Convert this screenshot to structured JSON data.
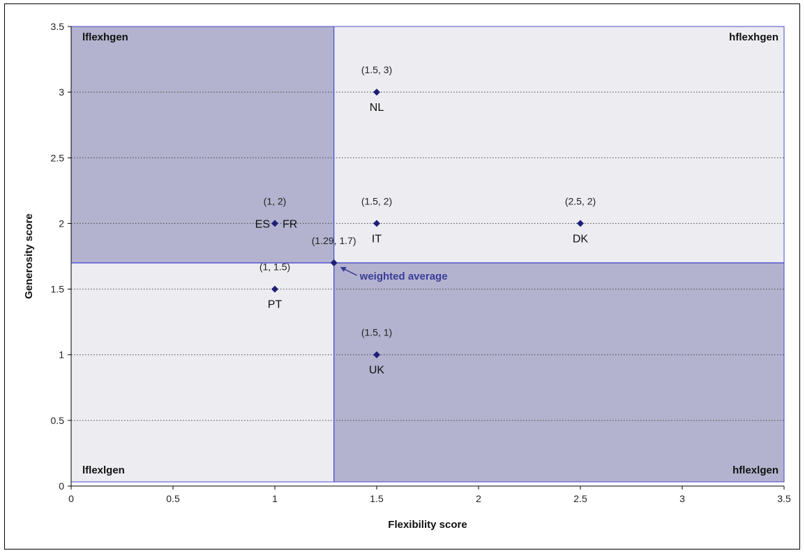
{
  "chart_data": {
    "type": "scatter",
    "xlabel": "Flexibility score",
    "ylabel": "Generosity score",
    "xlim": [
      0,
      3.5
    ],
    "ylim": [
      0,
      3.5
    ],
    "x_ticks": [
      "0",
      "0.5",
      "1",
      "1.5",
      "2",
      "2.5",
      "3",
      "3.5"
    ],
    "y_ticks": [
      "0",
      "0.5",
      "1",
      "1.5",
      "2",
      "2.5",
      "3",
      "3.5"
    ],
    "grid": "horizontal dotted",
    "divider": {
      "x": 1.29,
      "y": 1.7
    },
    "quadrants": {
      "top_left": "lflexhgen",
      "top_right": "hflexhgen",
      "bottom_left": "lflexlgen",
      "bottom_right": "hflexlgen"
    },
    "colors": {
      "shaded": "#b3b3cf",
      "light": "#ededf1",
      "divider": "#4a4ad0",
      "marker": "#1f1f7a",
      "annotation": "#3b3b98"
    },
    "points": [
      {
        "x": 1.5,
        "y": 3,
        "coord": "(1.5, 3)",
        "name": "NL"
      },
      {
        "x": 1,
        "y": 2,
        "coord": "(1, 2)",
        "name": "ES",
        "name2": "FR"
      },
      {
        "x": 1.5,
        "y": 2,
        "coord": "(1.5, 2)",
        "name": "IT"
      },
      {
        "x": 2.5,
        "y": 2,
        "coord": "(2.5, 2)",
        "name": "DK"
      },
      {
        "x": 1.29,
        "y": 1.7,
        "coord": "(1.29, 1.7)",
        "name": ""
      },
      {
        "x": 1,
        "y": 1.5,
        "coord": "(1, 1.5)",
        "name": "PT"
      },
      {
        "x": 1.5,
        "y": 1,
        "coord": "(1.5, 1)",
        "name": "UK"
      }
    ],
    "annotation": {
      "text": "weighted average",
      "x": 1.29,
      "y": 1.7
    }
  }
}
